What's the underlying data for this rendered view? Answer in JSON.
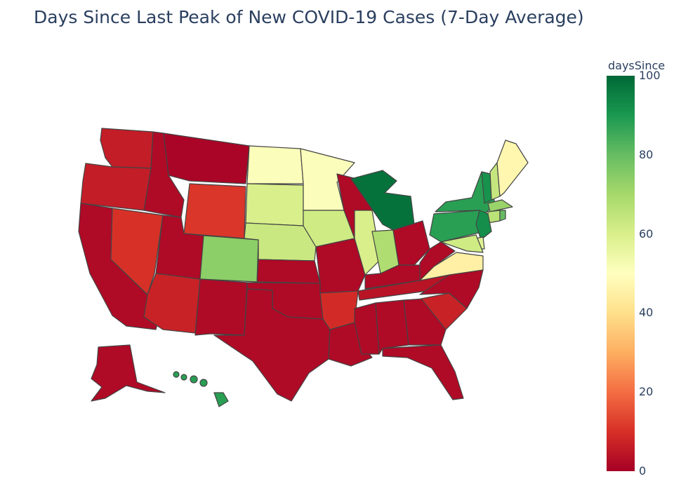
{
  "title": "Days Since Last Peak of New COVID-19 Cases (7-Day Average)",
  "colorbar": {
    "title": "daysSince",
    "min": 0,
    "max": 100,
    "ticks": [
      "0",
      "20",
      "40",
      "60",
      "80",
      "100"
    ],
    "colorscale": [
      "#a50026",
      "#d73027",
      "#f46d43",
      "#fdae61",
      "#fee08b",
      "#ffffbf",
      "#d9ef8b",
      "#a6d96a",
      "#66bd63",
      "#1a9850",
      "#006837"
    ]
  },
  "chart_data": {
    "type": "choropleth",
    "value_name": "daysSince",
    "states": [
      {
        "code": "WA",
        "value": 6
      },
      {
        "code": "OR",
        "value": 6
      },
      {
        "code": "CA",
        "value": 2
      },
      {
        "code": "ID",
        "value": 2
      },
      {
        "code": "NV",
        "value": 10
      },
      {
        "code": "MT",
        "value": 1
      },
      {
        "code": "WY",
        "value": 11
      },
      {
        "code": "UT",
        "value": 2
      },
      {
        "code": "AZ",
        "value": 7
      },
      {
        "code": "CO",
        "value": 74
      },
      {
        "code": "NM",
        "value": 2
      },
      {
        "code": "ND",
        "value": 51
      },
      {
        "code": "SD",
        "value": 60
      },
      {
        "code": "NE",
        "value": 63
      },
      {
        "code": "KS",
        "value": 2
      },
      {
        "code": "OK",
        "value": 2
      },
      {
        "code": "TX",
        "value": 2
      },
      {
        "code": "MN",
        "value": 51
      },
      {
        "code": "IA",
        "value": 62
      },
      {
        "code": "MO",
        "value": 2
      },
      {
        "code": "AR",
        "value": 9
      },
      {
        "code": "LA",
        "value": 2
      },
      {
        "code": "WI",
        "value": 2
      },
      {
        "code": "IL",
        "value": 60
      },
      {
        "code": "MI",
        "value": 98
      },
      {
        "code": "IN",
        "value": 68
      },
      {
        "code": "OH",
        "value": 2
      },
      {
        "code": "KY",
        "value": 2
      },
      {
        "code": "TN",
        "value": 4
      },
      {
        "code": "MS",
        "value": 2
      },
      {
        "code": "AL",
        "value": 2
      },
      {
        "code": "GA",
        "value": 2
      },
      {
        "code": "FL",
        "value": 2
      },
      {
        "code": "SC",
        "value": 7
      },
      {
        "code": "NC",
        "value": 2
      },
      {
        "code": "VA",
        "value": 45
      },
      {
        "code": "WV",
        "value": 2
      },
      {
        "code": "PA",
        "value": 88
      },
      {
        "code": "NY",
        "value": 88
      },
      {
        "code": "VT",
        "value": 91
      },
      {
        "code": "NH",
        "value": 64
      },
      {
        "code": "ME",
        "value": 47
      },
      {
        "code": "MA",
        "value": 72
      },
      {
        "code": "CT",
        "value": 66
      },
      {
        "code": "RI",
        "value": 80
      },
      {
        "code": "NJ",
        "value": 92
      },
      {
        "code": "DE",
        "value": 58
      },
      {
        "code": "MD",
        "value": 62
      },
      {
        "code": "AK",
        "value": 2
      },
      {
        "code": "HI",
        "value": 88
      }
    ]
  }
}
